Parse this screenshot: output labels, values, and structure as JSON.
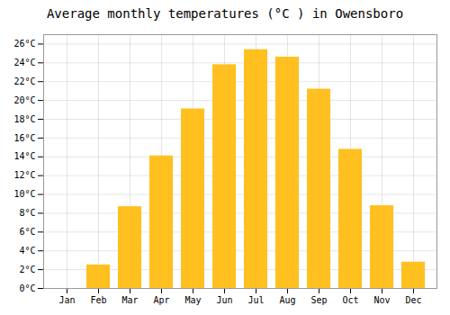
{
  "chart_data": {
    "type": "bar",
    "title": "Average monthly temperatures (°C ) in Owensboro",
    "categories": [
      "Jan",
      "Feb",
      "Mar",
      "Apr",
      "May",
      "Jun",
      "Jul",
      "Aug",
      "Sep",
      "Oct",
      "Nov",
      "Dec"
    ],
    "values": [
      0,
      2.5,
      8.7,
      14.1,
      19.1,
      23.8,
      25.4,
      24.6,
      21.2,
      14.8,
      8.8,
      2.8
    ],
    "color": "#FFC020",
    "ylim": [
      0,
      27
    ],
    "yticks": [
      {
        "value": 0,
        "label": "0°C"
      },
      {
        "value": 2,
        "label": "2°C"
      },
      {
        "value": 4,
        "label": "4°C"
      },
      {
        "value": 6,
        "label": "6°C"
      },
      {
        "value": 8,
        "label": "8°C"
      },
      {
        "value": 10,
        "label": "10°C"
      },
      {
        "value": 12,
        "label": "12°C"
      },
      {
        "value": 14,
        "label": "14°C"
      },
      {
        "value": 16,
        "label": "16°C"
      },
      {
        "value": 18,
        "label": "18°C"
      },
      {
        "value": 20,
        "label": "20°C"
      },
      {
        "value": 22,
        "label": "22°C"
      },
      {
        "value": 24,
        "label": "24°C"
      },
      {
        "value": 26,
        "label": "26°C"
      }
    ],
    "grid": true
  }
}
